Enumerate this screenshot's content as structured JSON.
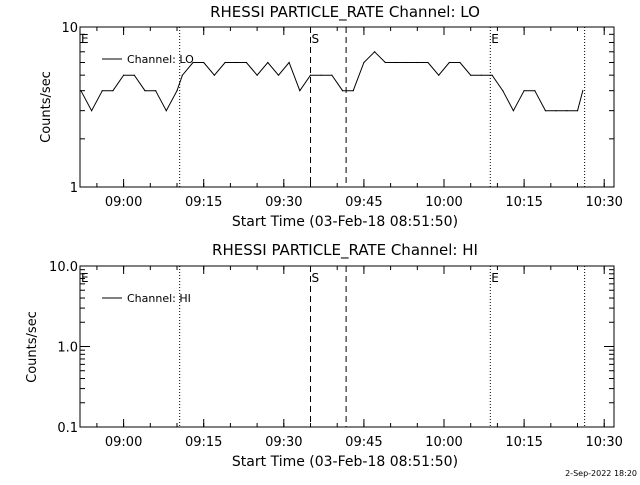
{
  "chart_data": [
    {
      "type": "line",
      "title": "RHESSI PARTICLE_RATE Channel: LO",
      "xlabel": "Start Time (03-Feb-18 08:51:50)",
      "ylabel": "Counts/sec",
      "yscale": "log",
      "ylim": [
        1,
        10
      ],
      "yticks": [
        "1",
        "10"
      ],
      "xlim": [
        "08:51:50",
        "10:31:50"
      ],
      "xticks": [
        "09:00",
        "09:15",
        "09:30",
        "09:45",
        "10:00",
        "10:15",
        "10:30"
      ],
      "legend": "top-left",
      "markers": [
        {
          "label": "E",
          "x": "08:51:50",
          "style": "dotted"
        },
        {
          "label": "",
          "x": "09:10:30",
          "style": "dotted"
        },
        {
          "label": "S",
          "x": "09:35:00",
          "style": "dashed"
        },
        {
          "label": "",
          "x": "09:41:40",
          "style": "dashed"
        },
        {
          "label": "E",
          "x": "10:08:40",
          "style": "dotted"
        },
        {
          "label": "",
          "x": "10:26:20",
          "style": "dotted"
        }
      ],
      "series": [
        {
          "name": "Channel: LO",
          "x": [
            "08:52:00",
            "08:54:00",
            "08:56:00",
            "08:58:00",
            "09:00:00",
            "09:02:00",
            "09:04:00",
            "09:06:00",
            "09:08:00",
            "09:10:00",
            "09:11:00",
            "09:13:00",
            "09:15:00",
            "09:17:00",
            "09:19:00",
            "09:21:00",
            "09:23:00",
            "09:25:00",
            "09:27:00",
            "09:29:00",
            "09:31:00",
            "09:33:00",
            "09:35:00",
            "09:37:00",
            "09:39:00",
            "09:41:00",
            "09:43:00",
            "09:45:00",
            "09:47:00",
            "09:49:00",
            "09:51:00",
            "09:53:00",
            "09:55:00",
            "09:57:00",
            "09:59:00",
            "10:01:00",
            "10:03:00",
            "10:05:00",
            "10:07:00",
            "10:09:00",
            "10:11:00",
            "10:13:00",
            "10:15:00",
            "10:17:00",
            "10:19:00",
            "10:21:00",
            "10:23:00",
            "10:25:00",
            "10:26:00"
          ],
          "values": [
            4,
            3,
            4,
            4,
            5,
            5,
            4,
            4,
            3,
            4,
            5,
            6,
            6,
            5,
            6,
            6,
            6,
            5,
            6,
            5,
            6,
            4,
            5,
            5,
            5,
            4,
            4,
            6,
            7,
            6,
            6,
            6,
            6,
            6,
            5,
            6,
            6,
            5,
            5,
            5,
            4,
            3,
            4,
            4,
            3,
            3,
            3,
            3,
            4
          ]
        }
      ]
    },
    {
      "type": "line",
      "title": "RHESSI PARTICLE_RATE Channel: HI",
      "xlabel": "Start Time (03-Feb-18 08:51:50)",
      "ylabel": "Counts/sec",
      "yscale": "log",
      "ylim": [
        0.1,
        10
      ],
      "yticks": [
        "0.1",
        "1.0",
        "10.0"
      ],
      "xlim": [
        "08:51:50",
        "10:31:50"
      ],
      "xticks": [
        "09:00",
        "09:15",
        "09:30",
        "09:45",
        "10:00",
        "10:15",
        "10:30"
      ],
      "legend": "top-left",
      "markers": [
        {
          "label": "E",
          "x": "08:51:50",
          "style": "dotted"
        },
        {
          "label": "",
          "x": "09:10:30",
          "style": "dotted"
        },
        {
          "label": "S",
          "x": "09:35:00",
          "style": "dashed"
        },
        {
          "label": "",
          "x": "09:41:40",
          "style": "dashed"
        },
        {
          "label": "E",
          "x": "10:08:40",
          "style": "dotted"
        },
        {
          "label": "",
          "x": "10:26:20",
          "style": "dotted"
        }
      ],
      "series": [
        {
          "name": "Channel: HI",
          "x": [],
          "values": []
        }
      ]
    }
  ],
  "footer": {
    "stamp": "2-Sep-2022 18:20"
  }
}
